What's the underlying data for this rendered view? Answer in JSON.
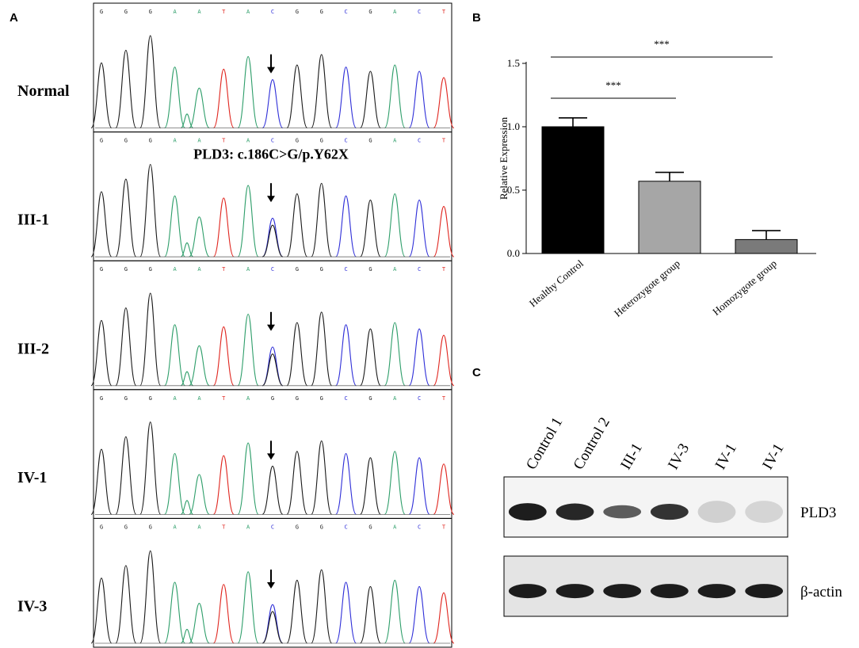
{
  "panels": {
    "a": {
      "letter": "A"
    },
    "b": {
      "letter": "B"
    },
    "c": {
      "letter": "C"
    }
  },
  "colors": {
    "G": "#1a1a1a",
    "A": "#2e9e6a",
    "T": "#e0261f",
    "C": "#2f2fd8",
    "bar_control": "#000000",
    "bar_hetero": "#a6a6a6",
    "bar_homo": "#7a7a7a"
  },
  "chromatograms": [
    {
      "label": "Normal",
      "bases": [
        "G",
        "G",
        "G",
        "A",
        "A",
        "T",
        "A",
        "C",
        "G",
        "G",
        "C",
        "G",
        "A",
        "C",
        "T"
      ],
      "arrow_index": 7,
      "double_peak": false
    },
    {
      "label": "III-1",
      "bases": [
        "G",
        "G",
        "G",
        "A",
        "A",
        "T",
        "A",
        "C",
        "G",
        "G",
        "C",
        "G",
        "A",
        "C",
        "T"
      ],
      "arrow_index": 7,
      "double_peak": true
    },
    {
      "label": "III-2",
      "bases": [
        "G",
        "G",
        "G",
        "A",
        "A",
        "T",
        "A",
        "C",
        "G",
        "G",
        "C",
        "G",
        "A",
        "C",
        "T"
      ],
      "arrow_index": 7,
      "double_peak": true
    },
    {
      "label": "IV-1",
      "bases": [
        "G",
        "G",
        "G",
        "A",
        "A",
        "T",
        "A",
        "G",
        "G",
        "G",
        "C",
        "G",
        "A",
        "C",
        "T"
      ],
      "arrow_index": 7,
      "double_peak": false
    },
    {
      "label": "IV-3",
      "bases": [
        "G",
        "G",
        "G",
        "A",
        "A",
        "T",
        "A",
        "C",
        "G",
        "G",
        "C",
        "G",
        "A",
        "C",
        "T"
      ],
      "arrow_index": 7,
      "double_peak": true
    }
  ],
  "mutation_label": "PLD3: c.186C>G/p.Y62X",
  "chart_data": {
    "type": "bar",
    "categories": [
      "Healthy Control",
      "Heterozygote group",
      "Homozygote group"
    ],
    "values": [
      1.0,
      0.57,
      0.11
    ],
    "errors": [
      0.07,
      0.07,
      0.07
    ],
    "ylabel": "Relative Expression",
    "ylim": [
      0,
      1.5
    ],
    "yticks": [
      "0.0",
      "0.5",
      "1.0",
      "1.5"
    ],
    "ytick_values": [
      0,
      0.5,
      1.0,
      1.5
    ],
    "significance": [
      {
        "from": 0,
        "to": 1,
        "label": "***"
      },
      {
        "from": 0,
        "to": 2,
        "label": "***"
      }
    ]
  },
  "western": {
    "lanes": [
      "Control 1",
      "Control 2",
      "III-1",
      "IV-3",
      "IV-1",
      "IV-1"
    ],
    "bands": [
      {
        "label": "PLD3",
        "intensities": [
          1.0,
          0.95,
          0.7,
          0.9,
          0.35,
          0.3
        ]
      },
      {
        "label": "β-actin",
        "intensities": [
          1.0,
          1.0,
          1.0,
          1.0,
          1.0,
          1.0
        ]
      }
    ]
  }
}
